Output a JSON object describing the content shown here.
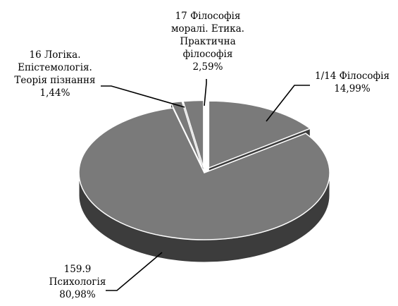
{
  "chart_data": {
    "type": "pie",
    "style": "3d-exploded",
    "colors": {
      "top": "#7a7a7a",
      "side": "#3c3c3c",
      "edge": "#ffffff",
      "leader": "#000000"
    },
    "slices": [
      {
        "label_lines": [
          "1/14 Філософія",
          "14,99%"
        ],
        "value": 14.99,
        "explode": 14,
        "label_side": "right"
      },
      {
        "label_lines": [
          "159.9",
          "Психологія",
          "80,98%"
        ],
        "value": 80.98,
        "explode": 0,
        "label_side": "left"
      },
      {
        "label_lines": [
          "16 Логіка.",
          "Епістемологія.",
          "Теорія пізнання",
          "1,44%"
        ],
        "value": 1.44,
        "explode": 14,
        "label_side": "left"
      },
      {
        "label_lines": [
          "17 Філософія",
          "моралі. Етика.",
          "Практична",
          "філософія",
          "2,59%"
        ],
        "value": 2.59,
        "explode": 14,
        "label_side": "center"
      }
    ]
  }
}
